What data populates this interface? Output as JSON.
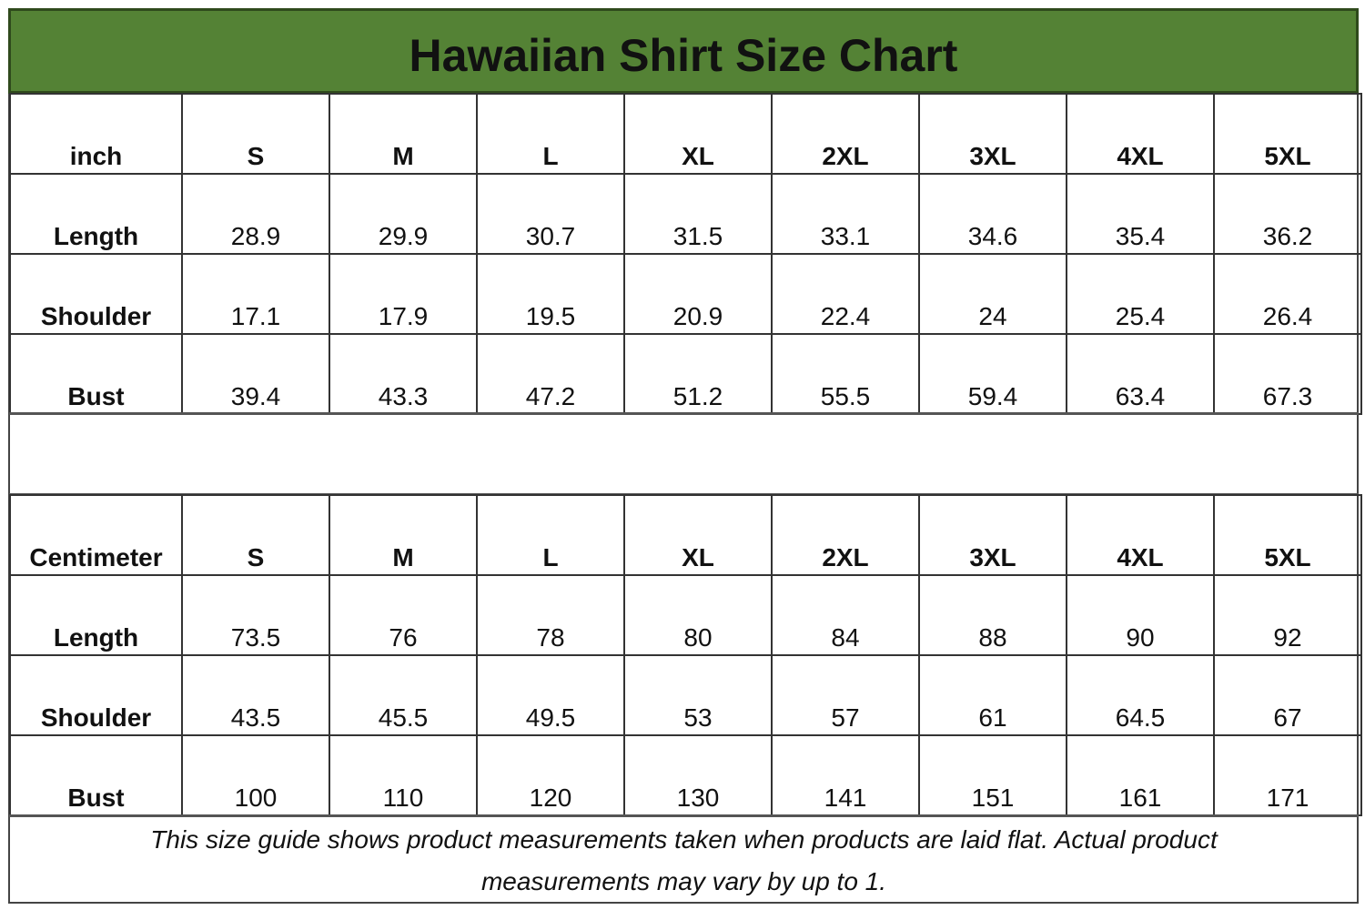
{
  "title": "Hawaiian Shirt Size Chart",
  "colors": {
    "header_bg": "#548235",
    "border": "#333333"
  },
  "sizes": [
    "S",
    "M",
    "L",
    "XL",
    "2XL",
    "3XL",
    "4XL",
    "5XL"
  ],
  "tables": [
    {
      "unit": "inch",
      "rows": [
        {
          "label": "Length",
          "values": [
            "28.9",
            "29.9",
            "30.7",
            "31.5",
            "33.1",
            "34.6",
            "35.4",
            "36.2"
          ]
        },
        {
          "label": "Shoulder",
          "values": [
            "17.1",
            "17.9",
            "19.5",
            "20.9",
            "22.4",
            "24",
            "25.4",
            "26.4"
          ]
        },
        {
          "label": "Bust",
          "values": [
            "39.4",
            "43.3",
            "47.2",
            "51.2",
            "55.5",
            "59.4",
            "63.4",
            "67.3"
          ]
        }
      ]
    },
    {
      "unit": "Centimeter",
      "rows": [
        {
          "label": "Length",
          "values": [
            "73.5",
            "76",
            "78",
            "80",
            "84",
            "88",
            "90",
            "92"
          ]
        },
        {
          "label": "Shoulder",
          "values": [
            "43.5",
            "45.5",
            "49.5",
            "53",
            "57",
            "61",
            "64.5",
            "67"
          ]
        },
        {
          "label": "Bust",
          "values": [
            "100",
            "110",
            "120",
            "130",
            "141",
            "151",
            "161",
            "171"
          ]
        }
      ]
    }
  ],
  "note": "This size guide shows product measurements taken when products are laid flat. Actual product measurements may vary by up to 1."
}
